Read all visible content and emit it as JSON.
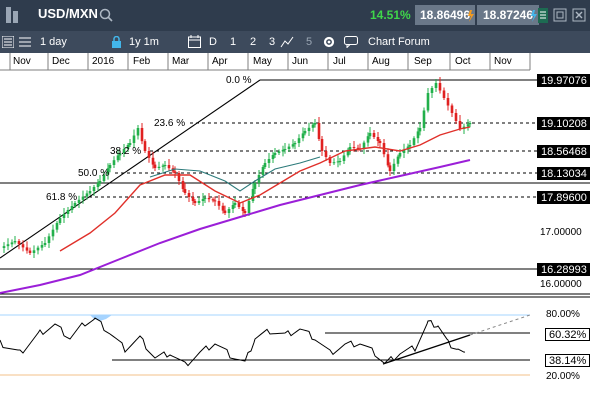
{
  "window": {
    "symbol": "USD/MXN",
    "change_pct": "14.51%",
    "bid": "18.86496",
    "ask": "18.87246"
  },
  "toolbar": {
    "interval": "1 day",
    "range": "1y 1m",
    "periods": [
      "D",
      "1",
      "2",
      "3",
      "5"
    ],
    "chart_forum": "Chart Forum"
  },
  "months": [
    "Nov",
    "Dec",
    "2016",
    "Feb",
    "Mar",
    "Apr",
    "May",
    "Jun",
    "Jul",
    "Aug",
    "Sep",
    "Oct",
    "Nov"
  ],
  "fib_labels": [
    "0.0 %",
    "23.6 %",
    "38.2 %",
    "50.0 %",
    "61.8 %"
  ],
  "price_axis": {
    "highlighted": [
      "19.97076",
      "19.10208",
      "18.56468",
      "18.13034",
      "17.89600",
      "16.28993"
    ],
    "ticks": [
      "17.00000",
      "16.00000"
    ],
    "current": "18.86496"
  },
  "rsi_axis": {
    "ticks": [
      "80.00%",
      "20.00%"
    ],
    "highlighted": [
      "60.32%",
      "38.14%"
    ]
  },
  "colors": {
    "titlebar_bg": "#2f3c4d",
    "toolbar_bg": "#3d4a5c",
    "change_positive": "#3fd64a",
    "price_badge": "#6a7889",
    "up_candle": "#22b04b",
    "down_candle": "#e02020",
    "ma_red": "#e0302a",
    "ma_teal": "#2c7a7a",
    "ma_purple": "#9b1fd8"
  },
  "icons": {
    "search": "search-icon",
    "flash": "flash-icon",
    "menu": "menu-icon",
    "lock": "lock-icon",
    "calendar": "calendar-icon",
    "indicator": "indicator-icon",
    "settings": "gear-icon",
    "chat": "chat-icon",
    "restore": "restore-icon",
    "close": "close-icon"
  }
}
